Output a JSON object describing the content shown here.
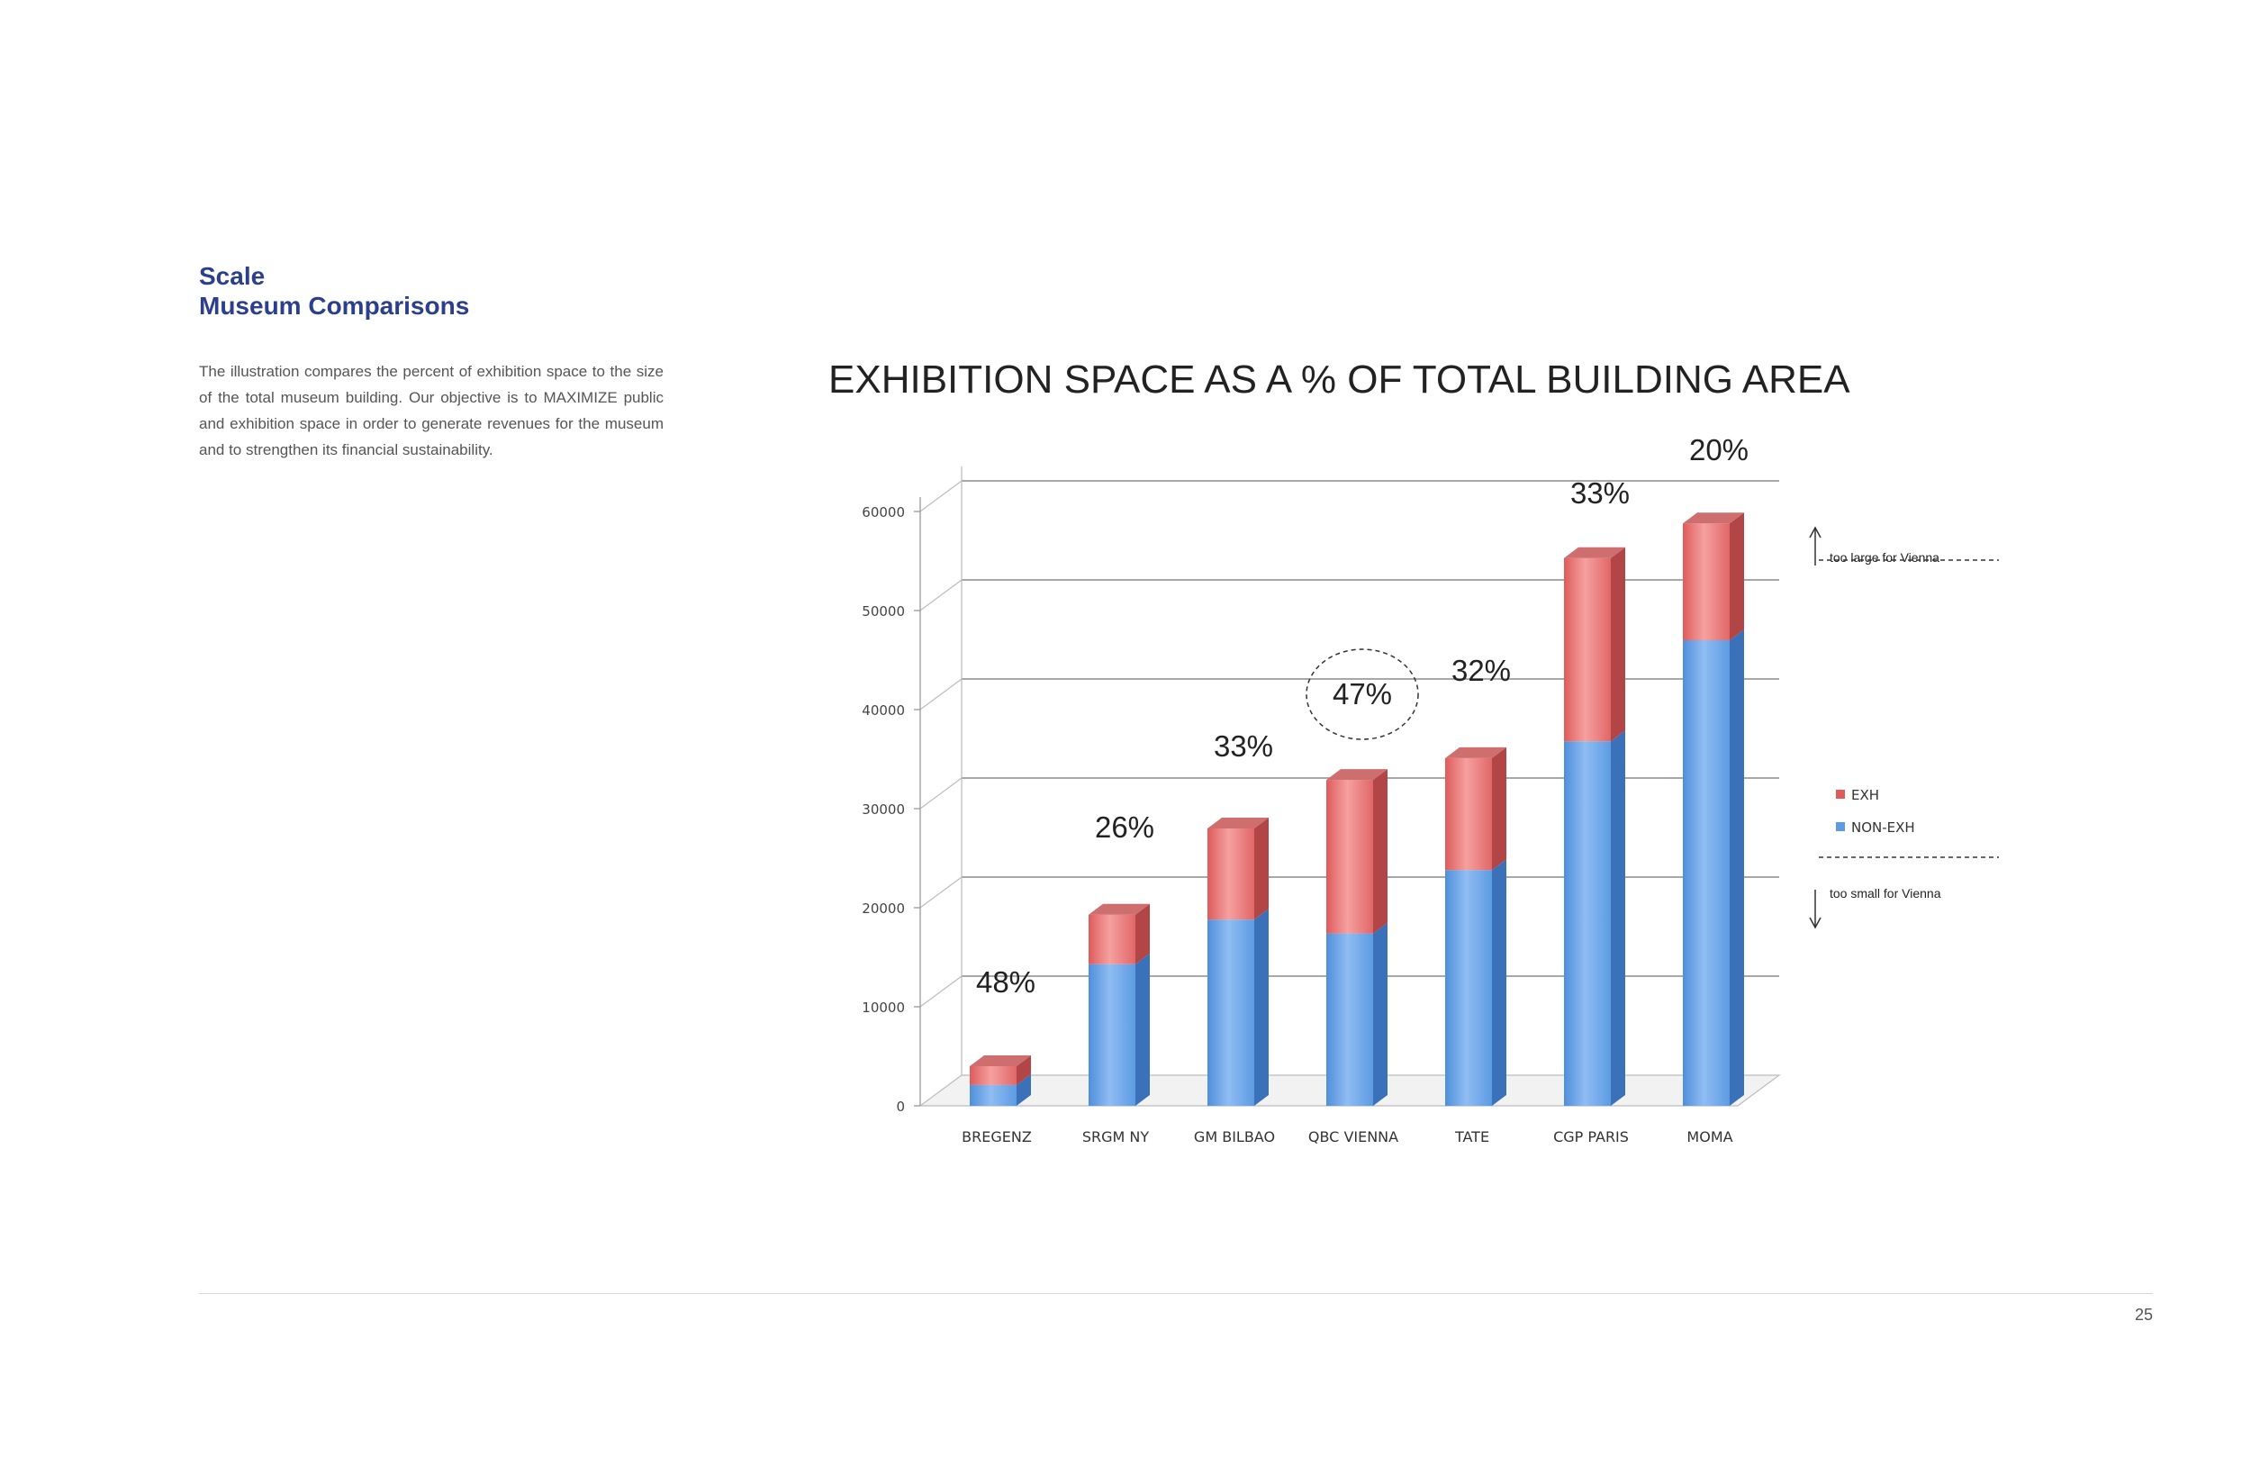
{
  "heading": {
    "line1": "Scale",
    "line2": "Museum Comparisons"
  },
  "description": "The illustration compares the percent of exhibition space to the size of the total museum building. Our objective is to MAXIMIZE public and exhibition space in order to generate revenues for the museum and to strengthen its financial sustainability.",
  "page_number": "25",
  "chart_data": {
    "type": "bar",
    "stacked": true,
    "title": "EXHIBITION SPACE AS A %  OF  TOTAL BUILDING AREA",
    "categories": [
      "BREGENZ",
      "SRGM NY",
      "GM BILBAO",
      "QBC VIENNA",
      "TATE",
      "CGP PARIS",
      "MOMA"
    ],
    "series": [
      {
        "name": "NON-EXH",
        "color": "#5b9be4",
        "values": [
          2100,
          14300,
          18800,
          17400,
          23800,
          36800,
          47000
        ]
      },
      {
        "name": "EXH",
        "color": "#e05a5a",
        "values": [
          1900,
          5000,
          9200,
          15500,
          11300,
          18500,
          11800
        ]
      }
    ],
    "percent_labels": [
      "48%",
      "26%",
      "33%",
      "47%",
      "32%",
      "33%",
      "20%"
    ],
    "highlighted_category": "QBC VIENNA",
    "yticks": [
      0,
      10000,
      20000,
      30000,
      40000,
      50000,
      60000
    ],
    "ylim": [
      0,
      60000
    ],
    "xlabel": "",
    "ylabel": "",
    "grid": true,
    "legend": {
      "position": "right",
      "entries": [
        "EXH",
        "NON-EXH"
      ]
    },
    "thresholds": [
      {
        "value": 52000,
        "label": "too large for Vienna",
        "direction": "up"
      },
      {
        "value": 22000,
        "label": "too small for Vienna",
        "direction": "down"
      }
    ]
  }
}
